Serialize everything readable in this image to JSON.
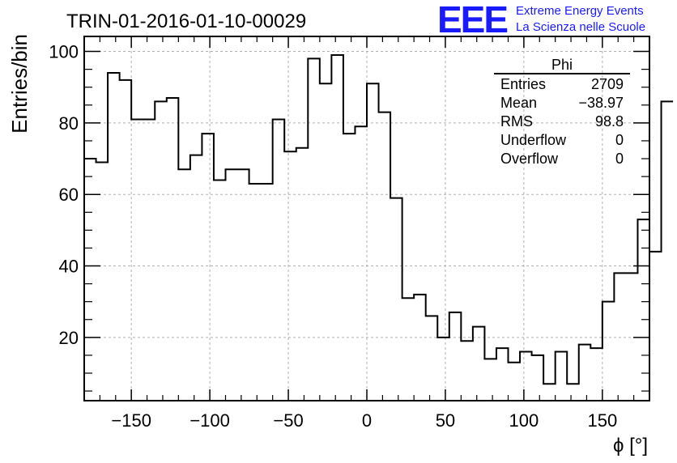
{
  "header": {
    "run_title": "TRIN-01-2016-01-10-00029",
    "logo_text": "EEE",
    "logo_line1": "Extreme Energy Events",
    "logo_line2": "La Scienza nelle Scuole"
  },
  "stats": {
    "title": "Phi",
    "rows": [
      {
        "label": "Entries",
        "value": "2709"
      },
      {
        "label": "Mean",
        "value": "−38.97"
      },
      {
        "label": "RMS",
        "value": "98.8"
      },
      {
        "label": "Underflow",
        "value": "0"
      },
      {
        "label": "Overflow",
        "value": "0"
      }
    ]
  },
  "colors": {
    "logo": "#1a1aff",
    "line": "#000000",
    "grid": "#b0b0b0"
  },
  "chart_data": {
    "type": "histogram",
    "xlabel": "ϕ [°]",
    "ylabel": "Entries/bin",
    "xlim": [
      -180,
      180
    ],
    "ylim": [
      2.3,
      104.2
    ],
    "grid": true,
    "x_ticks": [
      -150,
      -100,
      -50,
      0,
      50,
      100,
      150
    ],
    "x_tick_labels": [
      "−150",
      "−100",
      "−50",
      "0",
      "50",
      "100",
      "150"
    ],
    "y_ticks": [
      20,
      40,
      60,
      80,
      100
    ],
    "y_tick_labels": [
      "20",
      "40",
      "60",
      "80",
      "100"
    ],
    "bin_width": 7.5,
    "bin_edges_start": -180,
    "values": [
      70,
      69,
      94,
      92,
      81,
      81,
      86,
      87,
      67,
      71,
      77,
      64,
      67,
      67,
      63,
      63,
      81,
      72,
      73,
      98,
      91,
      99,
      77,
      79,
      91,
      83,
      59,
      31,
      32,
      26,
      20,
      27,
      19,
      23,
      14,
      17,
      13,
      16,
      15,
      7,
      16,
      7,
      18,
      17,
      30,
      38,
      38,
      53,
      44,
      86
    ]
  }
}
